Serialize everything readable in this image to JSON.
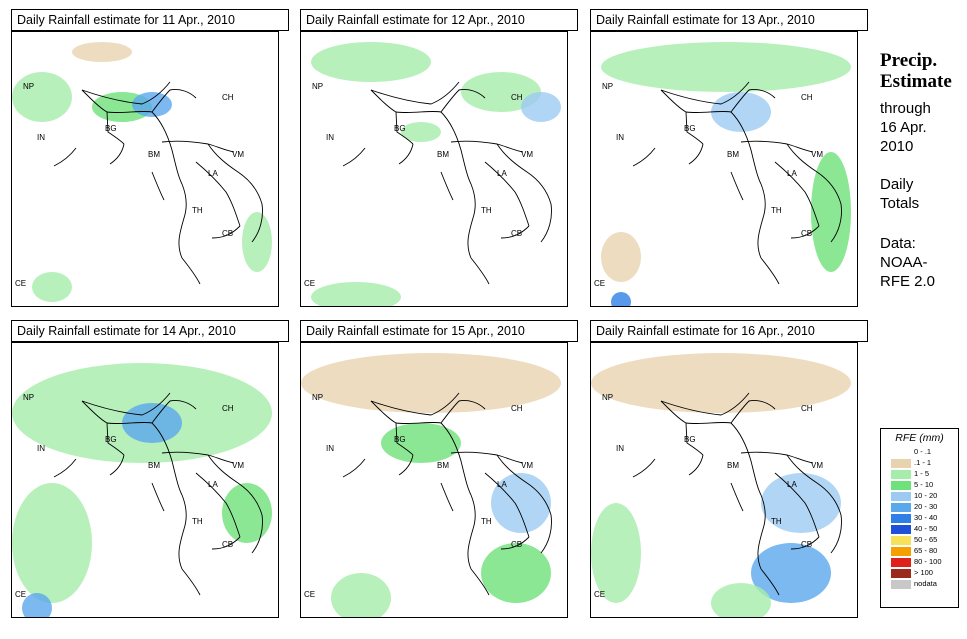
{
  "panels": [
    {
      "title": "Daily Rainfall estimate for  11 Apr., 2010"
    },
    {
      "title": "Daily Rainfall estimate for  12 Apr., 2010"
    },
    {
      "title": "Daily Rainfall estimate for  13 Apr., 2010"
    },
    {
      "title": "Daily Rainfall estimate for  14 Apr., 2010"
    },
    {
      "title": "Daily Rainfall estimate for  15 Apr., 2010"
    },
    {
      "title": "Daily Rainfall estimate for  16 Apr., 2010"
    }
  ],
  "country_labels": [
    "NP",
    "CH",
    "IN",
    "BG",
    "BM",
    "VM",
    "LA",
    "TH",
    "CB",
    "CE"
  ],
  "sidebar": {
    "title_line1": "Precip.",
    "title_line2": "Estimate",
    "through": "through",
    "date_line1": "16 Apr.",
    "date_line2": "2010",
    "daily1": "Daily",
    "daily2": "Totals",
    "data1": "Data:",
    "data2": "NOAA-",
    "data3": "RFE 2.0"
  },
  "legend": {
    "title": "RFE (mm)",
    "items": [
      {
        "label": "0 - .1",
        "color": "#ffffff"
      },
      {
        "label": ".1 - 1",
        "color": "#e8d3b0"
      },
      {
        "label": "1 - 5",
        "color": "#a6ecab"
      },
      {
        "label": "5 - 10",
        "color": "#6fe17b"
      },
      {
        "label": "10 - 20",
        "color": "#9dcaf2"
      },
      {
        "label": "20 - 30",
        "color": "#5aa8ec"
      },
      {
        "label": "30 - 40",
        "color": "#2f7fe6"
      },
      {
        "label": "40 - 50",
        "color": "#1f50d8"
      },
      {
        "label": "50 - 65",
        "color": "#f5e15a"
      },
      {
        "label": "65 - 80",
        "color": "#f5a000"
      },
      {
        "label": "80 - 100",
        "color": "#e0201a"
      },
      {
        "label": "> 100",
        "color": "#9a2a1c"
      },
      {
        "label": "nodata",
        "color": "#c8c8c8"
      }
    ]
  }
}
